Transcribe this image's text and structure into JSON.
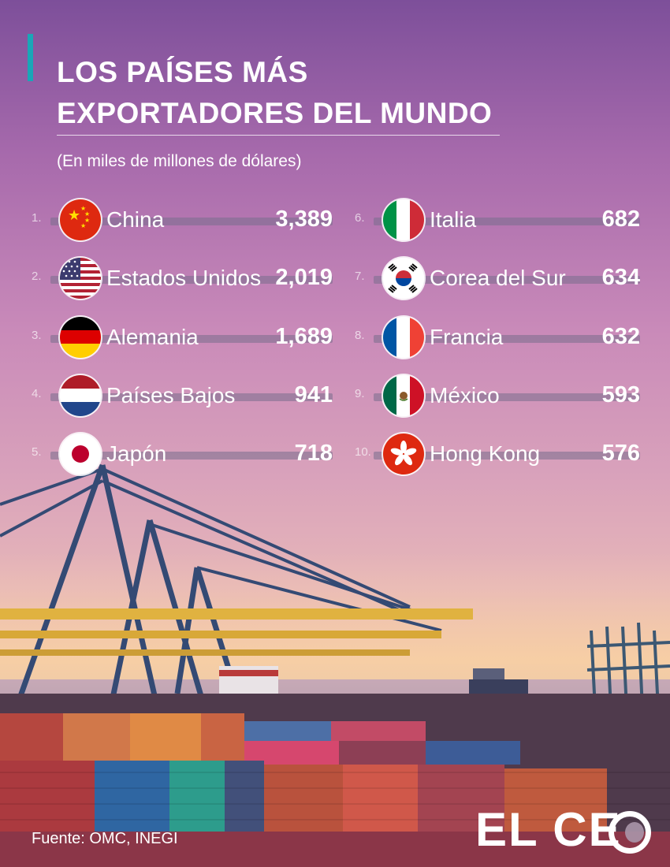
{
  "header": {
    "title_line1": "LOS PAÍSES MÁS",
    "title_line2": "EXPORTADORES DEL MUNDO",
    "subtitle": "(En miles de millones de dólares)"
  },
  "chart_data": {
    "type": "table",
    "title": "LOS PAÍSES MÁS EXPORTADORES DEL MUNDO",
    "subtitle": "(En miles de millones de dólares)",
    "rows": [
      {
        "rank": "1.",
        "country": "China",
        "value": "3,389",
        "flag": "china-flag-icon"
      },
      {
        "rank": "2.",
        "country": "Estados Unidos",
        "value": "2,019",
        "flag": "usa-flag-icon"
      },
      {
        "rank": "3.",
        "country": "Alemania",
        "value": "1,689",
        "flag": "germany-flag-icon"
      },
      {
        "rank": "4.",
        "country": "Países Bajos",
        "value": "941",
        "flag": "netherlands-flag-icon"
      },
      {
        "rank": "5.",
        "country": "Japón",
        "value": "718",
        "flag": "japan-flag-icon"
      },
      {
        "rank": "6.",
        "country": "Italia",
        "value": "682",
        "flag": "italy-flag-icon"
      },
      {
        "rank": "7.",
        "country": "Corea del Sur",
        "value": "634",
        "flag": "south-korea-flag-icon"
      },
      {
        "rank": "8.",
        "country": "Francia",
        "value": "632",
        "flag": "france-flag-icon"
      },
      {
        "rank": "9.",
        "country": "México",
        "value": "593",
        "flag": "mexico-flag-icon"
      },
      {
        "rank": "10.",
        "country": "Hong Kong",
        "value": "576",
        "flag": "hong-kong-flag-icon"
      }
    ]
  },
  "footer": {
    "source": "Fuente: OMC, INEGI",
    "logo": "EL CE"
  },
  "colors": {
    "accent": "#1aa6b7",
    "text": "#ffffff",
    "sky_top": "#7d4f9a",
    "sky_mid": "#d9a2bb"
  },
  "background": "port-cranes-containers-photo"
}
